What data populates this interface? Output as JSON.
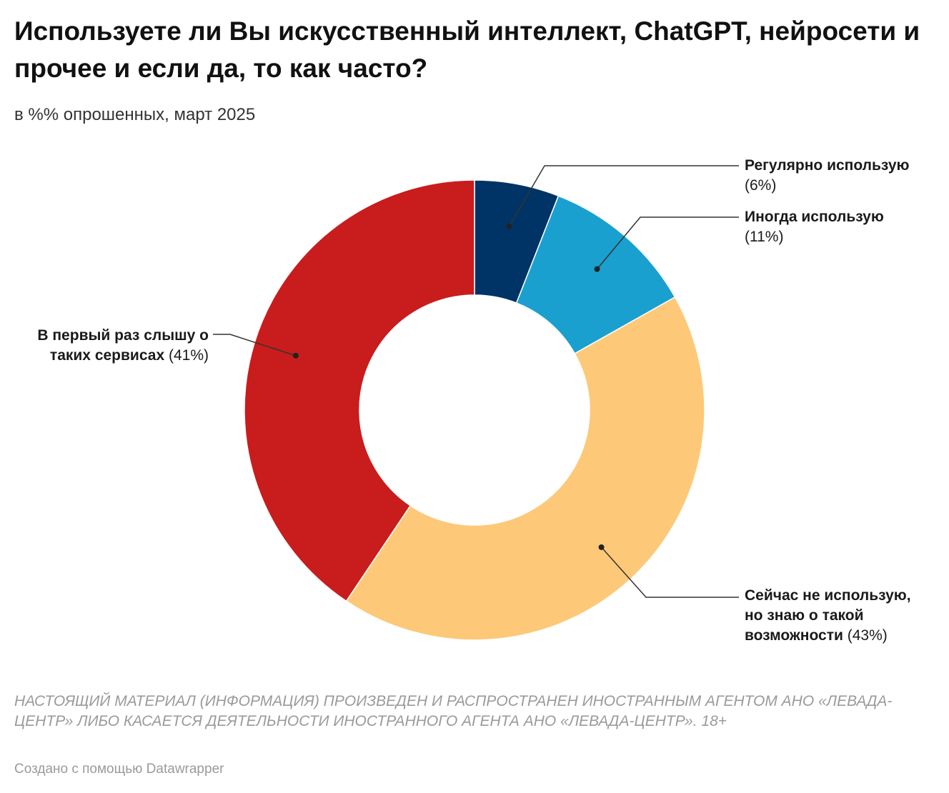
{
  "header": {
    "title": "Используете ли Вы искусственный интеллект, ChatGPT, нейросети и прочее и если да, то как часто?",
    "subtitle": "в %% опрошенных, март 2025"
  },
  "chart_data": {
    "type": "pie",
    "donut": true,
    "slices": [
      {
        "name": "Регулярно использую",
        "value": 6,
        "value_label": "(6%)",
        "color": "#003366"
      },
      {
        "name": "Иногда использую",
        "value": 11,
        "value_label": "(11%)",
        "color": "#1aa0cf"
      },
      {
        "name": "Сейчас не использую, но знаю о такой возможности",
        "value": 43,
        "value_label": "(43%)",
        "color": "#fdc978"
      },
      {
        "name": "В первый раз слышу о таких сервисах",
        "value": 41,
        "value_label": "(41%)",
        "color": "#c91c1c"
      }
    ]
  },
  "footer": {
    "disclaimer": "НАСТОЯЩИЙ МАТЕРИАЛ (ИНФОРМАЦИЯ) ПРОИЗВЕДЕН И РАСПРОСТРАНЕН ИНОСТРАННЫМ АГЕНТОМ АНО «ЛЕВАДА-ЦЕНТР» ЛИБО КАСАЕТСЯ ДЕЯТЕЛЬНОСТИ ИНОСТРАННОГО АГЕНТА АНО «ЛЕВАДА-ЦЕНТР». 18+",
    "credit": "Создано с помощью Datawrapper"
  }
}
